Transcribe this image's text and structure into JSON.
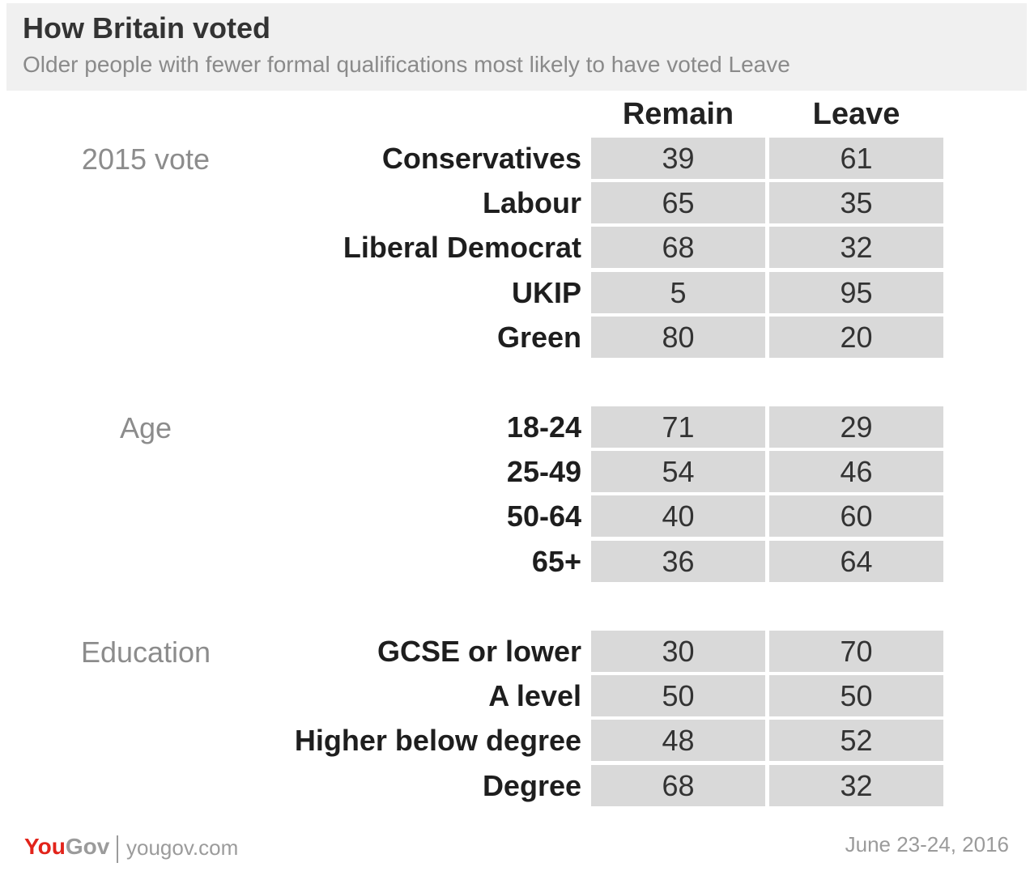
{
  "header": {
    "title": "How Britain voted",
    "subtitle": "Older people with fewer formal qualifications most likely to have voted Leave"
  },
  "chart_data": {
    "type": "table",
    "columns": [
      "Remain",
      "Leave"
    ],
    "groups": [
      {
        "label": "2015 vote",
        "rows": [
          {
            "label": "Conservatives",
            "values": [
              39,
              61
            ]
          },
          {
            "label": "Labour",
            "values": [
              65,
              35
            ]
          },
          {
            "label": "Liberal Democrat",
            "values": [
              68,
              32
            ]
          },
          {
            "label": "UKIP",
            "values": [
              5,
              95
            ]
          },
          {
            "label": "Green",
            "values": [
              80,
              20
            ]
          }
        ]
      },
      {
        "label": "Age",
        "rows": [
          {
            "label": "18-24",
            "values": [
              71,
              29
            ]
          },
          {
            "label": "25-49",
            "values": [
              54,
              46
            ]
          },
          {
            "label": "50-64",
            "values": [
              40,
              60
            ]
          },
          {
            "label": "65+",
            "values": [
              36,
              64
            ]
          }
        ]
      },
      {
        "label": "Education",
        "rows": [
          {
            "label": "GCSE or lower",
            "values": [
              30,
              70
            ]
          },
          {
            "label": "A level",
            "values": [
              50,
              50
            ]
          },
          {
            "label": "Higher below degree",
            "values": [
              48,
              52
            ]
          },
          {
            "label": "Degree",
            "values": [
              68,
              32
            ]
          }
        ]
      }
    ]
  },
  "footer": {
    "logo_you": "You",
    "logo_gov": "Gov",
    "url": "yougov.com",
    "date": "June 23-24, 2016"
  }
}
